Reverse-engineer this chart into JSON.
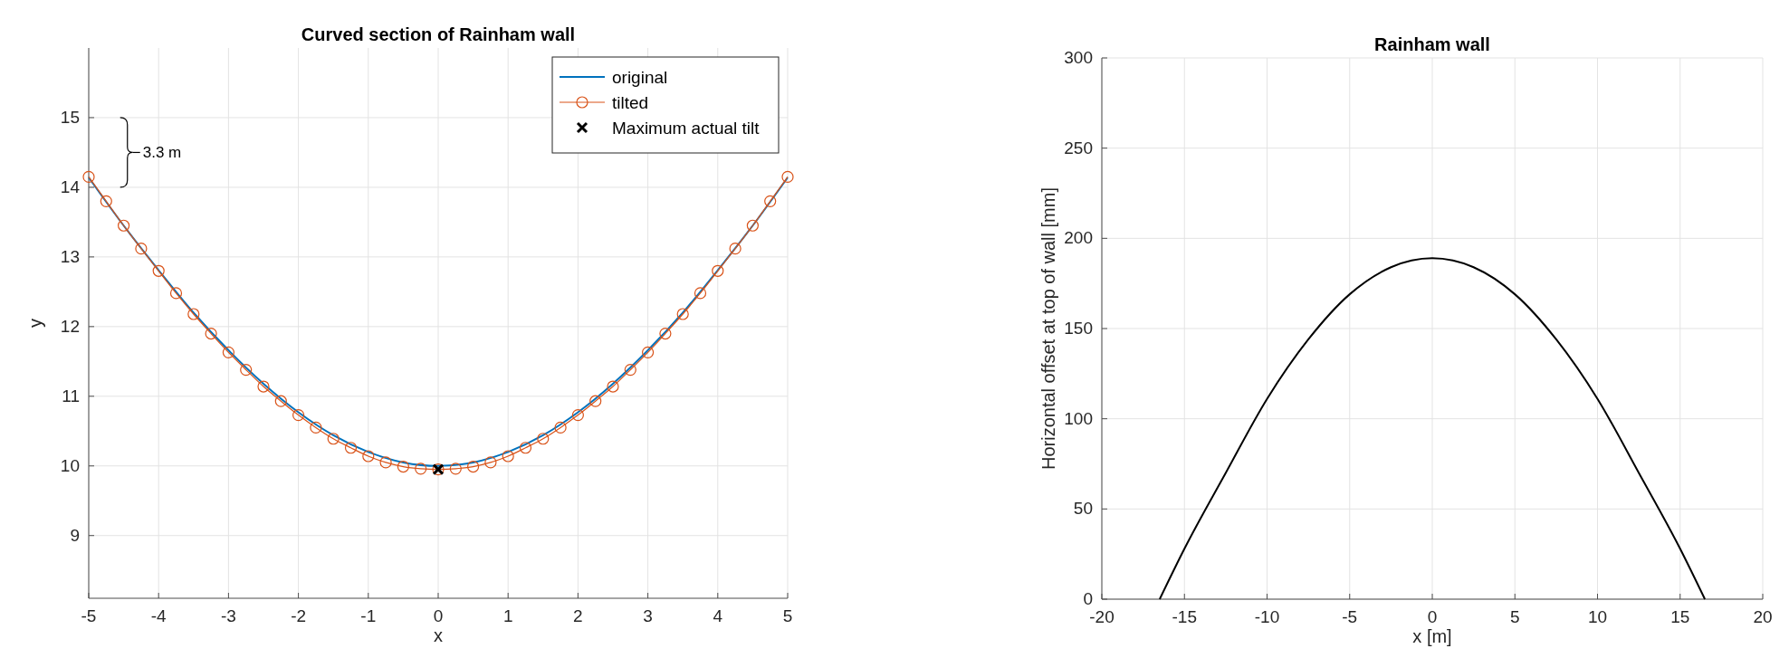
{
  "chart_data": [
    {
      "type": "line",
      "title": "Curved section of Rainham wall",
      "xlabel": "x",
      "ylabel": "y",
      "xlim": [
        -5,
        5
      ],
      "xticks": [
        -5,
        -4,
        -3,
        -2,
        -1,
        0,
        1,
        2,
        3,
        4,
        5
      ],
      "ylim": [
        8.1,
        16
      ],
      "yticks": [
        9,
        10,
        11,
        12,
        13,
        14,
        15
      ],
      "grid": true,
      "legend": "top right",
      "line_style": "solid",
      "annotations": [
        "3.3 m"
      ],
      "series": [
        {
          "name": "original",
          "color": "#0072bd",
          "marker": "none",
          "x": [
            -5,
            -4.5,
            -4,
            -3.5,
            -3,
            -2.5,
            -2,
            -1.5,
            -1,
            -0.5,
            0,
            0.5,
            1,
            1.5,
            2,
            2.5,
            3,
            3.5,
            4,
            4.5,
            5
          ],
          "values": [
            14.14,
            13.45,
            12.81,
            12.2,
            11.66,
            11.18,
            10.77,
            10.44,
            10.2,
            10.05,
            10.0,
            10.05,
            10.2,
            10.44,
            10.77,
            11.18,
            11.66,
            12.2,
            12.81,
            13.45,
            14.14
          ]
        },
        {
          "name": "tilted",
          "color": "#d95319",
          "marker": "circle",
          "x": [
            -5,
            -4.75,
            -4.5,
            -4.25,
            -4,
            -3.75,
            -3.5,
            -3.25,
            -3,
            -2.75,
            -2.5,
            -2.25,
            -2,
            -1.75,
            -1.5,
            -1.25,
            -1,
            -0.75,
            -0.5,
            -0.25,
            0,
            0.25,
            0.5,
            0.75,
            1,
            1.25,
            1.5,
            1.75,
            2,
            2.25,
            2.5,
            2.75,
            3,
            3.25,
            3.5,
            3.75,
            4,
            4.25,
            4.5,
            4.75,
            5
          ],
          "values": [
            14.15,
            13.8,
            13.45,
            13.12,
            12.8,
            12.48,
            12.18,
            11.9,
            11.63,
            11.38,
            11.14,
            10.93,
            10.73,
            10.55,
            10.39,
            10.26,
            10.14,
            10.05,
            9.99,
            9.96,
            9.95,
            9.96,
            9.99,
            10.05,
            10.14,
            10.26,
            10.39,
            10.55,
            10.73,
            10.93,
            11.14,
            11.38,
            11.63,
            11.9,
            12.18,
            12.48,
            12.8,
            13.12,
            13.45,
            13.8,
            14.15
          ]
        },
        {
          "name": "Maximum actual tilt",
          "type": "scatter",
          "color": "#000000",
          "marker": "cross",
          "x": [
            0
          ],
          "values": [
            9.95
          ]
        }
      ]
    },
    {
      "type": "line",
      "title": "Rainham wall",
      "xlabel": "x [m]",
      "ylabel": "Horizontal offset at top of wall [mm]",
      "xlim": [
        -20,
        20
      ],
      "xticks": [
        -20,
        -15,
        -10,
        -5,
        0,
        5,
        10,
        15,
        20
      ],
      "ylim": [
        0,
        300
      ],
      "yticks": [
        0,
        50,
        100,
        150,
        200,
        250,
        300
      ],
      "grid": true,
      "line_style": "solid",
      "series": [
        {
          "color": "#000000",
          "x": [
            -16.5,
            -15,
            -12.5,
            -10,
            -7.5,
            -5,
            -2.5,
            0,
            2.5,
            5,
            7.5,
            10,
            12.5,
            15,
            16.5
          ],
          "values": [
            0,
            28,
            70,
            111,
            144,
            169,
            184,
            189,
            184,
            169,
            144,
            111,
            70,
            28,
            0
          ]
        }
      ]
    }
  ]
}
